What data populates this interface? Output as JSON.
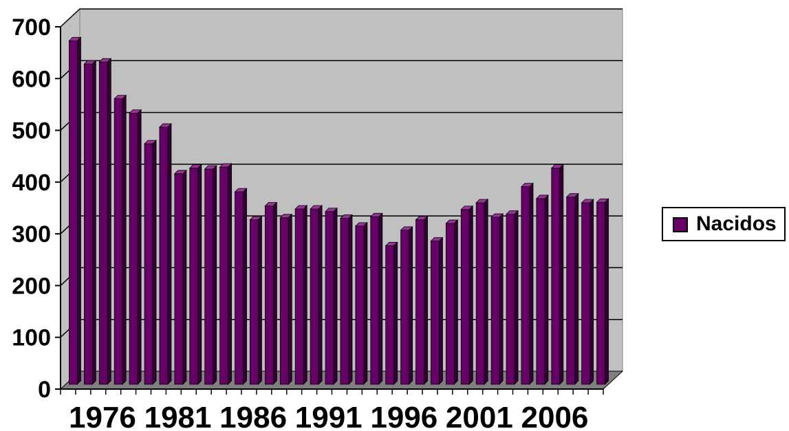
{
  "chart_data": {
    "type": "bar",
    "categories": [
      "1976",
      "1977",
      "1978",
      "1979",
      "1980",
      "1981",
      "1982",
      "1983",
      "1984",
      "1985",
      "1986",
      "1987",
      "1988",
      "1989",
      "1990",
      "1991",
      "1992",
      "1993",
      "1994",
      "1995",
      "1996",
      "1997",
      "1998",
      "1999",
      "2000",
      "2001",
      "2002",
      "2003",
      "2004",
      "2005",
      "2006",
      "2007",
      "2008",
      "2009",
      "2010",
      "2011"
    ],
    "series": [
      {
        "name": "Nacidos",
        "values": [
          673,
          628,
          632,
          561,
          533,
          474,
          506,
          416,
          427,
          425,
          429,
          381,
          327,
          354,
          331,
          348,
          348,
          343,
          330,
          315,
          333,
          277,
          307,
          327,
          286,
          320,
          347,
          360,
          332,
          338,
          391,
          368,
          427,
          371,
          360,
          361
        ]
      }
    ],
    "x_tick_labels": [
      "1976",
      "1981",
      "1986",
      "1991",
      "1996",
      "2001",
      "2006"
    ],
    "y_tick_labels": [
      "0",
      "100",
      "200",
      "300",
      "400",
      "500",
      "600",
      "700"
    ],
    "ylim": [
      0,
      700
    ],
    "grid": true,
    "legend_position": "right",
    "colors": {
      "bar_front": "#660066",
      "bar_top": "#993399",
      "bar_side": "#330033",
      "wall": "#c0c0c0",
      "floor": "#808080"
    },
    "title": "",
    "xlabel": "",
    "ylabel": ""
  }
}
